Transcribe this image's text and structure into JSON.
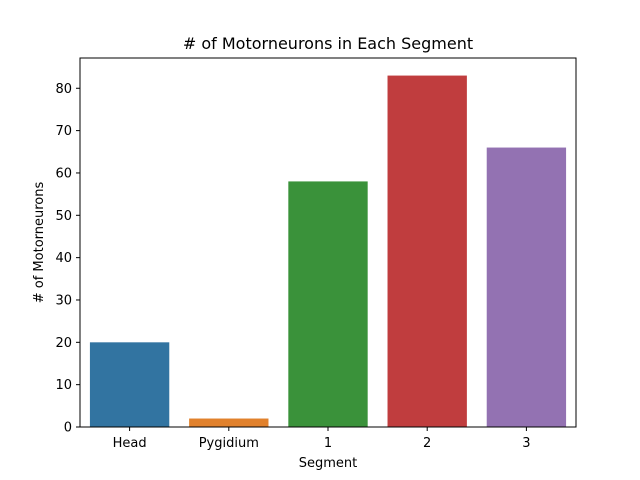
{
  "chart_data": {
    "type": "bar",
    "title": "# of Motorneurons in Each Segment",
    "xlabel": "Segment",
    "ylabel": "# of Motorneurons",
    "categories": [
      "Head",
      "Pygidium",
      "1",
      "2",
      "3"
    ],
    "values": [
      20,
      2,
      58,
      83,
      66
    ],
    "colors": [
      "#3274a1",
      "#e1812c",
      "#3a923a",
      "#c03d3e",
      "#9372b2"
    ],
    "ylim": [
      0,
      87.15
    ],
    "yticks": [
      0,
      10,
      20,
      30,
      40,
      50,
      60,
      70,
      80
    ],
    "grid": false,
    "legend": "none"
  }
}
